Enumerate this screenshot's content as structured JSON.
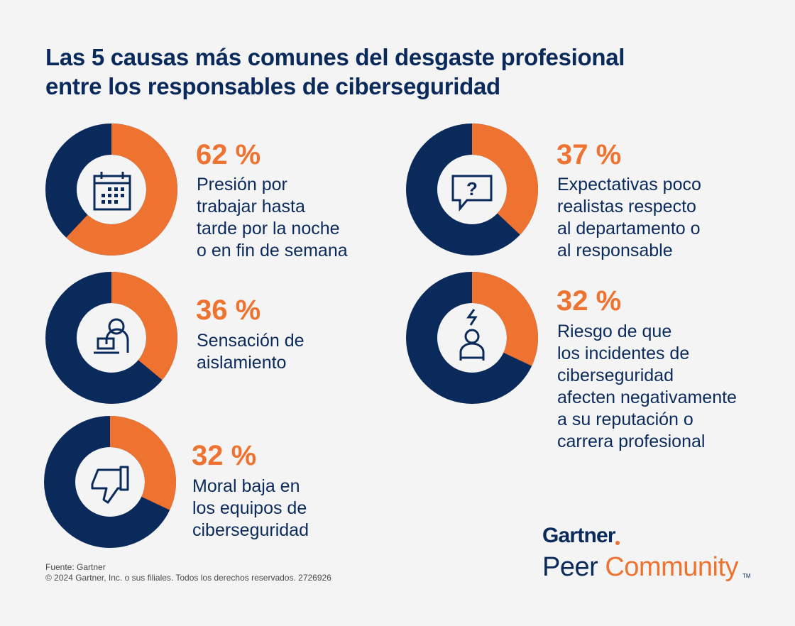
{
  "title": {
    "line1": "Las 5 causas más comunes del desgaste profesional",
    "line2": "entre los responsables de ciberseguridad"
  },
  "colors": {
    "accent": "#ee7330",
    "navy": "#0b2a5c",
    "background": "#f4f4f4"
  },
  "chart_data": {
    "type": "pie",
    "title": "Las 5 causas más comunes del desgaste profesional entre los responsables de ciberseguridad",
    "unit": "%",
    "categories": [
      "Presión por trabajar hasta tarde por la noche o en fin de semana",
      "Expectativas poco realistas respecto al departamento o al responsable",
      "Sensación de aislamiento",
      "Riesgo de que los incidentes de ciberseguridad afecten negativamente a su reputación o carrera profesional",
      "Moral baja en los equipos de ciberseguridad"
    ],
    "values": [
      62,
      37,
      36,
      32,
      32
    ],
    "items": [
      {
        "value": 62,
        "label": "62 %",
        "icon": "calendar-icon",
        "lines": [
          "Presión por",
          "trabajar hasta",
          "tarde por la noche",
          "o en fin de semana"
        ]
      },
      {
        "value": 37,
        "label": "37 %",
        "icon": "question-bubble-icon",
        "lines": [
          "Expectativas poco",
          "realistas respecto",
          "al departamento o",
          "al responsable"
        ]
      },
      {
        "value": 36,
        "label": "36 %",
        "icon": "person-at-laptop-icon",
        "lines": [
          "Sensación de",
          "aislamiento"
        ]
      },
      {
        "value": 32,
        "label": "32 %",
        "icon": "person-under-lightning-icon",
        "lines": [
          "Riesgo de que",
          "los incidentes de",
          "ciberseguridad",
          "afecten negativamente",
          "a su reputación o",
          "carrera profesional"
        ]
      },
      {
        "value": 32,
        "label": "32 %",
        "icon": "thumbs-down-icon",
        "lines": [
          "Moral baja en",
          "los equipos de",
          "ciberseguridad"
        ]
      }
    ]
  },
  "footer": {
    "source": "Fuente: Gartner",
    "copyright": "© 2024 Gartner, Inc. o sus filiales. Todos los derechos reservados. 2726926"
  },
  "brand": {
    "name": "Gartner",
    "sub1": "Peer",
    "sub2": "Community",
    "tm": "TM"
  }
}
